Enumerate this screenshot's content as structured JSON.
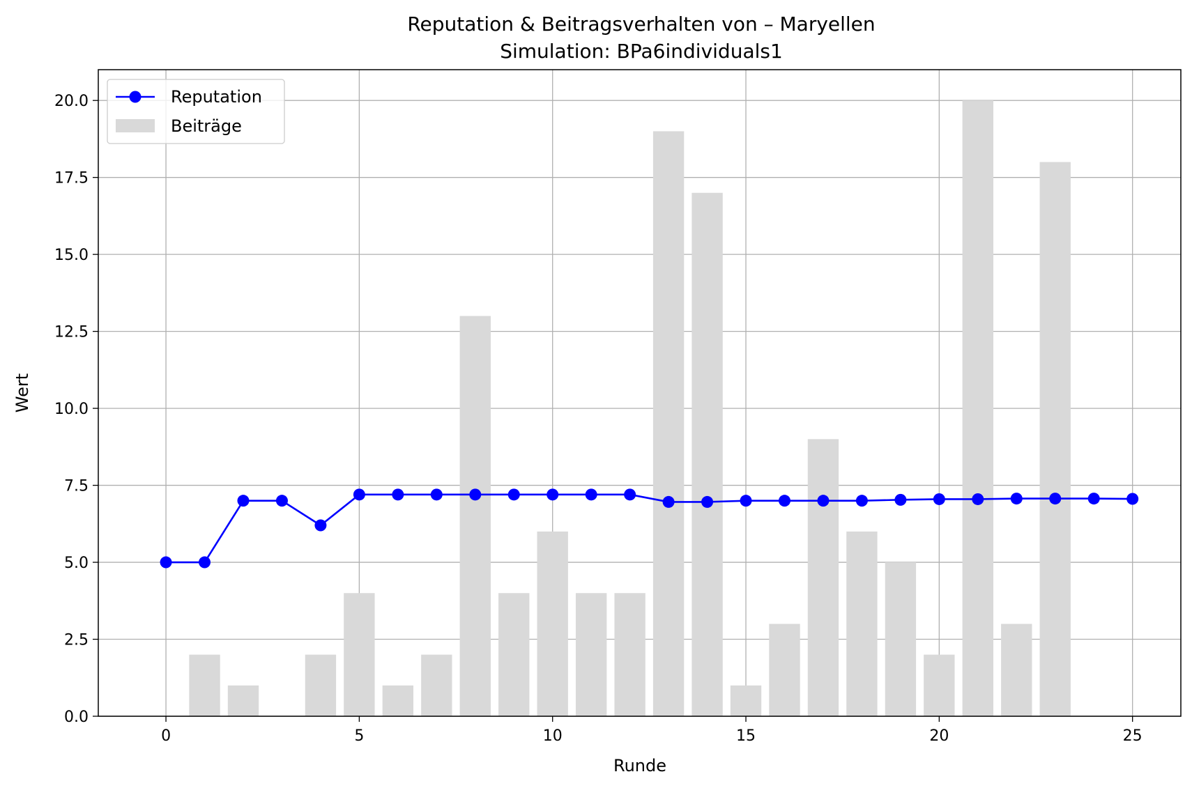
{
  "chart_data": {
    "type": "bar+line",
    "title": "Reputation & Beitragsverhalten von – Maryellen",
    "subtitle": "Simulation: BPa6individuals1",
    "xlabel": "Runde",
    "ylabel": "Wert",
    "xlim": [
      -1.75,
      26.25
    ],
    "ylim": [
      0,
      21
    ],
    "x_ticks": [
      0,
      5,
      10,
      15,
      20,
      25
    ],
    "x_tick_labels": [
      "0",
      "5",
      "10",
      "15",
      "20",
      "25"
    ],
    "y_ticks": [
      0,
      2.5,
      5,
      7.5,
      10,
      12.5,
      15,
      17.5,
      20
    ],
    "y_tick_labels": [
      "0.0",
      "2.5",
      "5.0",
      "7.5",
      "10.0",
      "12.5",
      "15.0",
      "17.5",
      "20.0"
    ],
    "grid": true,
    "legend_position": "upper-left",
    "x": [
      0,
      1,
      2,
      3,
      4,
      5,
      6,
      7,
      8,
      9,
      10,
      11,
      12,
      13,
      14,
      15,
      16,
      17,
      18,
      19,
      20,
      21,
      22,
      23,
      24,
      25
    ],
    "series": [
      {
        "name": "Reputation",
        "kind": "line",
        "marker": "circle",
        "color": "#0000ff",
        "values": [
          5.0,
          5.0,
          7.0,
          7.0,
          6.2,
          7.2,
          7.2,
          7.2,
          7.2,
          7.2,
          7.2,
          7.2,
          7.2,
          6.96,
          6.96,
          7.0,
          7.0,
          7.0,
          7.0,
          7.03,
          7.05,
          7.05,
          7.07,
          7.07,
          7.07,
          7.06
        ]
      },
      {
        "name": "Beiträge",
        "kind": "bar",
        "color": "#d9d9d9",
        "values": [
          0,
          2,
          1,
          0,
          2,
          4,
          1,
          2,
          13,
          4,
          6,
          4,
          4,
          19,
          17,
          1,
          3,
          9,
          6,
          5,
          2,
          20,
          3,
          18,
          0,
          0
        ]
      }
    ]
  }
}
